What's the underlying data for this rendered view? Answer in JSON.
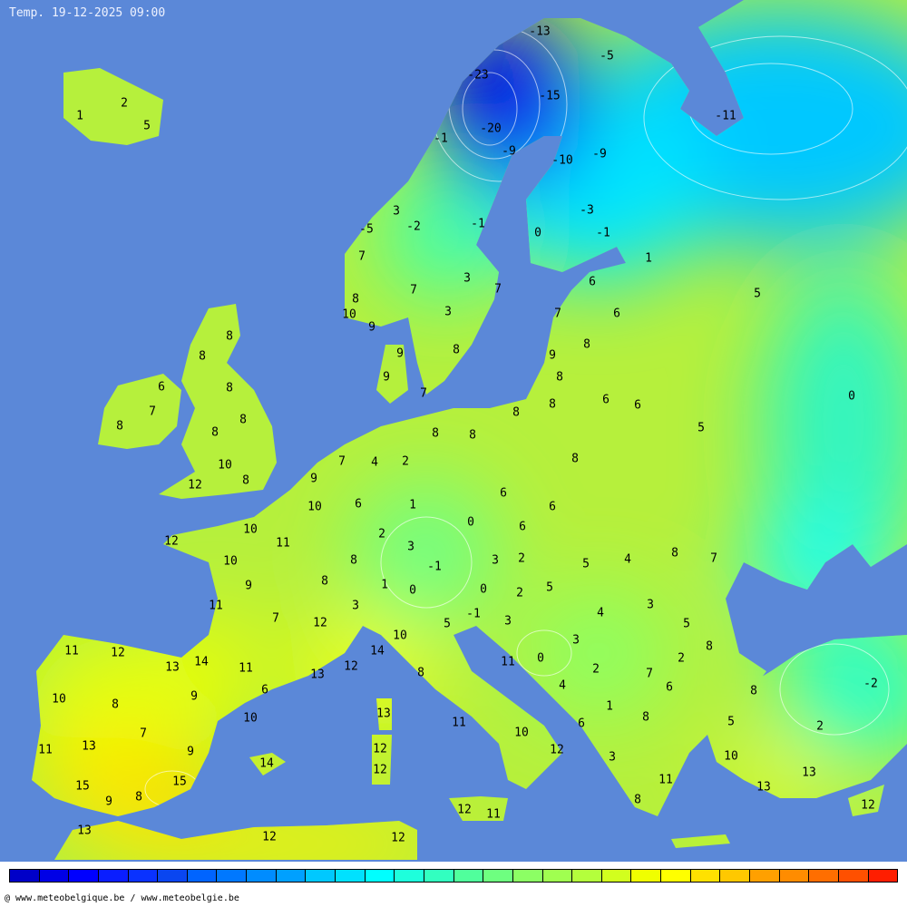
{
  "title": "Temp. 19-12-2025 09:00",
  "credit": "@ www.meteobelgique.be / www.meteobelgie.be",
  "colors": {
    "sea": "#5b88d8",
    "colorbar": [
      "#0000c8",
      "#0000e6",
      "#0000ff",
      "#0a1eff",
      "#0a32ff",
      "#0a46f0",
      "#0064ff",
      "#0078ff",
      "#008cff",
      "#00a0ff",
      "#00c8ff",
      "#00e1ff",
      "#00ffff",
      "#1effdc",
      "#32ffc0",
      "#50ff9c",
      "#6eff80",
      "#8cff64",
      "#a0ff50",
      "#b4ff3c",
      "#d2ff1e",
      "#f0ff00",
      "#ffff00",
      "#ffe100",
      "#ffc800",
      "#ffa000",
      "#ff8c00",
      "#ff6e00",
      "#ff5000",
      "#ff1e00"
    ]
  },
  "temperatures": [
    "1",
    "2",
    "5",
    "-13",
    "-5",
    "-23",
    "-15",
    "-11",
    "-20",
    "-1",
    "-9",
    "-10",
    "-9",
    "3",
    "-2",
    "-1",
    "-3",
    "0",
    "-1",
    "-5",
    "7",
    "1",
    "3",
    "7",
    "7",
    "6",
    "5",
    "8",
    "3",
    "10",
    "7",
    "6",
    "9",
    "8",
    "8",
    "8",
    "9",
    "9",
    "8",
    "9",
    "8",
    "6",
    "8",
    "7",
    "0",
    "7",
    "8",
    "6",
    "6",
    "8",
    "8",
    "8",
    "5",
    "8",
    "8",
    "8",
    "7",
    "4",
    "2",
    "8",
    "10",
    "9",
    "8",
    "12",
    "6",
    "1",
    "10",
    "6",
    "6",
    "0",
    "6",
    "10",
    "2",
    "12",
    "11",
    "3",
    "8",
    "7",
    "4",
    "10",
    "8",
    "3",
    "2",
    "5",
    "-1",
    "9",
    "8",
    "1",
    "0",
    "0",
    "2",
    "5",
    "11",
    "3",
    "3",
    "4",
    "-1",
    "7",
    "12",
    "5",
    "3",
    "5",
    "10",
    "3",
    "8",
    "11",
    "12",
    "14",
    "14",
    "0",
    "2",
    "13",
    "11",
    "12",
    "11",
    "2",
    "7",
    "13",
    "8",
    "-2",
    "6",
    "4",
    "8",
    "10",
    "9",
    "6",
    "8",
    "1",
    "13",
    "10",
    "8",
    "5",
    "11",
    "6",
    "2",
    "7",
    "10",
    "13",
    "11",
    "9",
    "12",
    "12",
    "3",
    "10",
    "14",
    "12",
    "13",
    "15",
    "15",
    "11",
    "13",
    "9",
    "8",
    "8",
    "12",
    "11",
    "12",
    "13",
    "12",
    "12"
  ]
}
